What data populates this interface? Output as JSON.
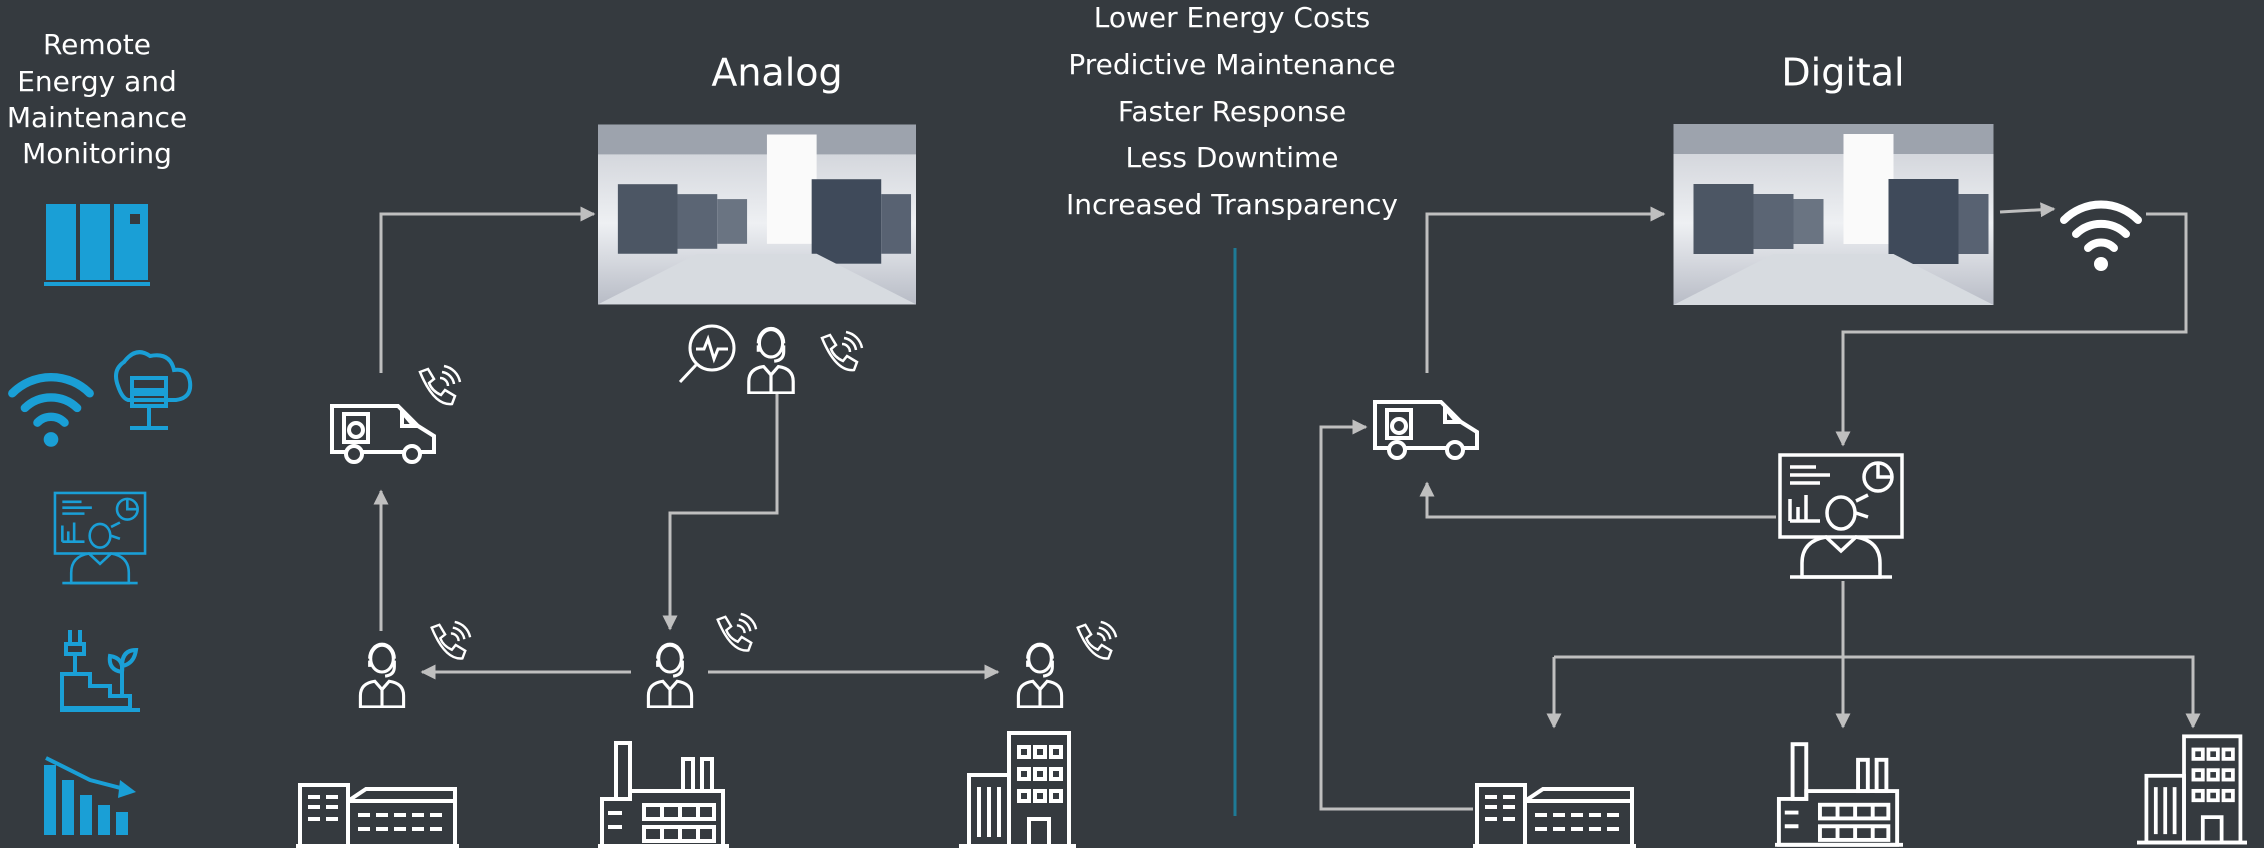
{
  "left_panel": {
    "title_lines": [
      "Remote",
      "Energy and",
      "Maintenance",
      "Monitoring"
    ]
  },
  "analog": {
    "title": "Analog"
  },
  "digital": {
    "title": "Digital"
  },
  "benefits": [
    "Lower Energy Costs",
    "Predictive Maintenance",
    "Faster Response",
    "Less Downtime",
    "Increased Transparency"
  ]
}
